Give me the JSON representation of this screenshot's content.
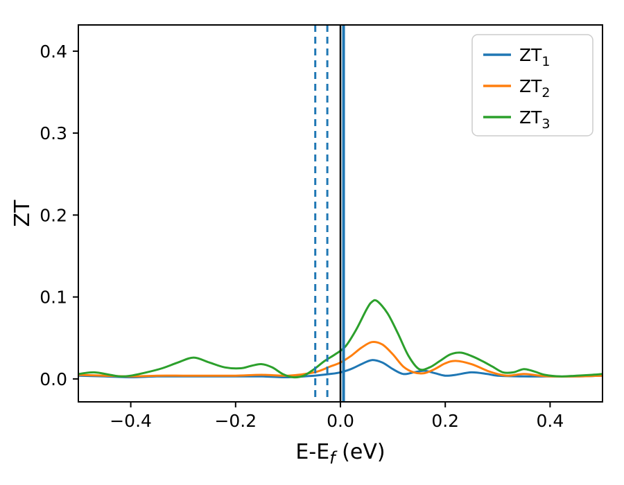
{
  "figure": {
    "background": "#ffffff"
  },
  "chart_data": {
    "type": "line",
    "title": "",
    "xlabel": {
      "main": "E-E",
      "sub": "f",
      "rest": " (eV)"
    },
    "ylabel": "ZT",
    "xlim": [
      -0.5,
      0.5
    ],
    "ylim": [
      -0.028,
      0.432
    ],
    "xticks": [
      -0.4,
      -0.2,
      0.0,
      0.2,
      0.4
    ],
    "yticks": [
      0.0,
      0.1,
      0.2,
      0.3,
      0.4
    ],
    "grid": false,
    "legend": {
      "position": "upper right",
      "entries": [
        {
          "main": "ZT",
          "sub": "1",
          "color": "#1f77b4"
        },
        {
          "main": "ZT",
          "sub": "2",
          "color": "#ff7f0e"
        },
        {
          "main": "ZT",
          "sub": "3",
          "color": "#2ca02c"
        }
      ]
    },
    "vlines": [
      {
        "x": -0.048,
        "color": "#1f77b4",
        "style": "dashed",
        "width": 3
      },
      {
        "x": -0.025,
        "color": "#1f77b4",
        "style": "dashed",
        "width": 3
      },
      {
        "x": 0.0,
        "color": "#000000",
        "style": "solid",
        "width": 2.5
      },
      {
        "x": 0.006,
        "color": "#1f77b4",
        "style": "solid",
        "width": 4
      }
    ],
    "series": [
      {
        "name": "ZT1",
        "color": "#1f77b4",
        "points": [
          [
            -0.5,
            0.004
          ],
          [
            -0.45,
            0.003
          ],
          [
            -0.4,
            0.002
          ],
          [
            -0.35,
            0.003
          ],
          [
            -0.3,
            0.003
          ],
          [
            -0.25,
            0.003
          ],
          [
            -0.2,
            0.003
          ],
          [
            -0.15,
            0.003
          ],
          [
            -0.1,
            0.002
          ],
          [
            -0.05,
            0.004
          ],
          [
            -0.02,
            0.006
          ],
          [
            0.0,
            0.008
          ],
          [
            0.02,
            0.012
          ],
          [
            0.04,
            0.018
          ],
          [
            0.06,
            0.023
          ],
          [
            0.08,
            0.02
          ],
          [
            0.1,
            0.012
          ],
          [
            0.12,
            0.006
          ],
          [
            0.14,
            0.008
          ],
          [
            0.16,
            0.01
          ],
          [
            0.18,
            0.007
          ],
          [
            0.2,
            0.004
          ],
          [
            0.22,
            0.005
          ],
          [
            0.25,
            0.008
          ],
          [
            0.28,
            0.006
          ],
          [
            0.3,
            0.004
          ],
          [
            0.35,
            0.003
          ],
          [
            0.4,
            0.003
          ],
          [
            0.45,
            0.003
          ],
          [
            0.5,
            0.004
          ]
        ]
      },
      {
        "name": "ZT2",
        "color": "#ff7f0e",
        "points": [
          [
            -0.5,
            0.005
          ],
          [
            -0.45,
            0.004
          ],
          [
            -0.4,
            0.003
          ],
          [
            -0.35,
            0.004
          ],
          [
            -0.3,
            0.004
          ],
          [
            -0.25,
            0.004
          ],
          [
            -0.2,
            0.004
          ],
          [
            -0.15,
            0.005
          ],
          [
            -0.1,
            0.004
          ],
          [
            -0.05,
            0.008
          ],
          [
            -0.02,
            0.015
          ],
          [
            0.0,
            0.02
          ],
          [
            0.02,
            0.028
          ],
          [
            0.04,
            0.038
          ],
          [
            0.06,
            0.045
          ],
          [
            0.08,
            0.042
          ],
          [
            0.1,
            0.03
          ],
          [
            0.12,
            0.015
          ],
          [
            0.14,
            0.008
          ],
          [
            0.16,
            0.007
          ],
          [
            0.18,
            0.012
          ],
          [
            0.2,
            0.019
          ],
          [
            0.22,
            0.022
          ],
          [
            0.25,
            0.018
          ],
          [
            0.28,
            0.01
          ],
          [
            0.3,
            0.006
          ],
          [
            0.32,
            0.004
          ],
          [
            0.35,
            0.006
          ],
          [
            0.38,
            0.004
          ],
          [
            0.4,
            0.003
          ],
          [
            0.45,
            0.003
          ],
          [
            0.5,
            0.004
          ]
        ]
      },
      {
        "name": "ZT3",
        "color": "#2ca02c",
        "points": [
          [
            -0.5,
            0.006
          ],
          [
            -0.47,
            0.008
          ],
          [
            -0.44,
            0.005
          ],
          [
            -0.42,
            0.003
          ],
          [
            -0.4,
            0.004
          ],
          [
            -0.37,
            0.008
          ],
          [
            -0.34,
            0.013
          ],
          [
            -0.31,
            0.02
          ],
          [
            -0.28,
            0.026
          ],
          [
            -0.25,
            0.02
          ],
          [
            -0.22,
            0.014
          ],
          [
            -0.19,
            0.013
          ],
          [
            -0.17,
            0.016
          ],
          [
            -0.15,
            0.018
          ],
          [
            -0.13,
            0.014
          ],
          [
            -0.11,
            0.006
          ],
          [
            -0.09,
            0.002
          ],
          [
            -0.07,
            0.004
          ],
          [
            -0.05,
            0.012
          ],
          [
            -0.03,
            0.022
          ],
          [
            -0.01,
            0.03
          ],
          [
            0.01,
            0.04
          ],
          [
            0.03,
            0.06
          ],
          [
            0.05,
            0.085
          ],
          [
            0.06,
            0.094
          ],
          [
            0.07,
            0.095
          ],
          [
            0.09,
            0.08
          ],
          [
            0.11,
            0.055
          ],
          [
            0.13,
            0.028
          ],
          [
            0.15,
            0.012
          ],
          [
            0.17,
            0.014
          ],
          [
            0.19,
            0.022
          ],
          [
            0.21,
            0.03
          ],
          [
            0.23,
            0.032
          ],
          [
            0.25,
            0.028
          ],
          [
            0.27,
            0.022
          ],
          [
            0.29,
            0.015
          ],
          [
            0.31,
            0.008
          ],
          [
            0.33,
            0.008
          ],
          [
            0.35,
            0.012
          ],
          [
            0.37,
            0.009
          ],
          [
            0.39,
            0.005
          ],
          [
            0.42,
            0.003
          ],
          [
            0.45,
            0.004
          ],
          [
            0.48,
            0.005
          ],
          [
            0.5,
            0.006
          ]
        ]
      }
    ]
  }
}
